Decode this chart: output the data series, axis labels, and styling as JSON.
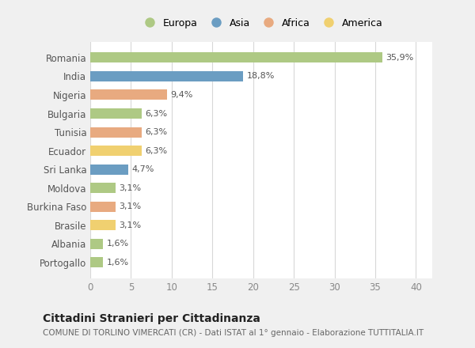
{
  "countries": [
    "Romania",
    "India",
    "Nigeria",
    "Bulgaria",
    "Tunisia",
    "Ecuador",
    "Sri Lanka",
    "Moldova",
    "Burkina Faso",
    "Brasile",
    "Albania",
    "Portogallo"
  ],
  "values": [
    35.9,
    18.8,
    9.4,
    6.3,
    6.3,
    6.3,
    4.7,
    3.1,
    3.1,
    3.1,
    1.6,
    1.6
  ],
  "labels": [
    "35,9%",
    "18,8%",
    "9,4%",
    "6,3%",
    "6,3%",
    "6,3%",
    "4,7%",
    "3,1%",
    "3,1%",
    "3,1%",
    "1,6%",
    "1,6%"
  ],
  "colors": [
    "#aec984",
    "#6b9dc2",
    "#e8aa80",
    "#aec984",
    "#e8aa80",
    "#f0d070",
    "#6b9dc2",
    "#aec984",
    "#e8aa80",
    "#f0d070",
    "#aec984",
    "#aec984"
  ],
  "legend_labels": [
    "Europa",
    "Asia",
    "Africa",
    "America"
  ],
  "legend_colors": [
    "#aec984",
    "#6b9dc2",
    "#e8aa80",
    "#f0d070"
  ],
  "title": "Cittadini Stranieri per Cittadinanza",
  "subtitle": "COMUNE DI TORLINO VIMERCATI (CR) - Dati ISTAT al 1° gennaio - Elaborazione TUTTITALIA.IT",
  "xlabel_ticks": [
    0,
    5,
    10,
    15,
    20,
    25,
    30,
    35,
    40
  ],
  "xlim": [
    0,
    42
  ],
  "bg_color": "#f0f0f0",
  "plot_bg_color": "#ffffff",
  "grid_color": "#d8d8d8",
  "bar_height": 0.55,
  "label_fontsize": 8.0,
  "ytick_fontsize": 8.5,
  "xtick_fontsize": 8.5,
  "legend_fontsize": 9.0,
  "title_fontsize": 10.0,
  "subtitle_fontsize": 7.5
}
